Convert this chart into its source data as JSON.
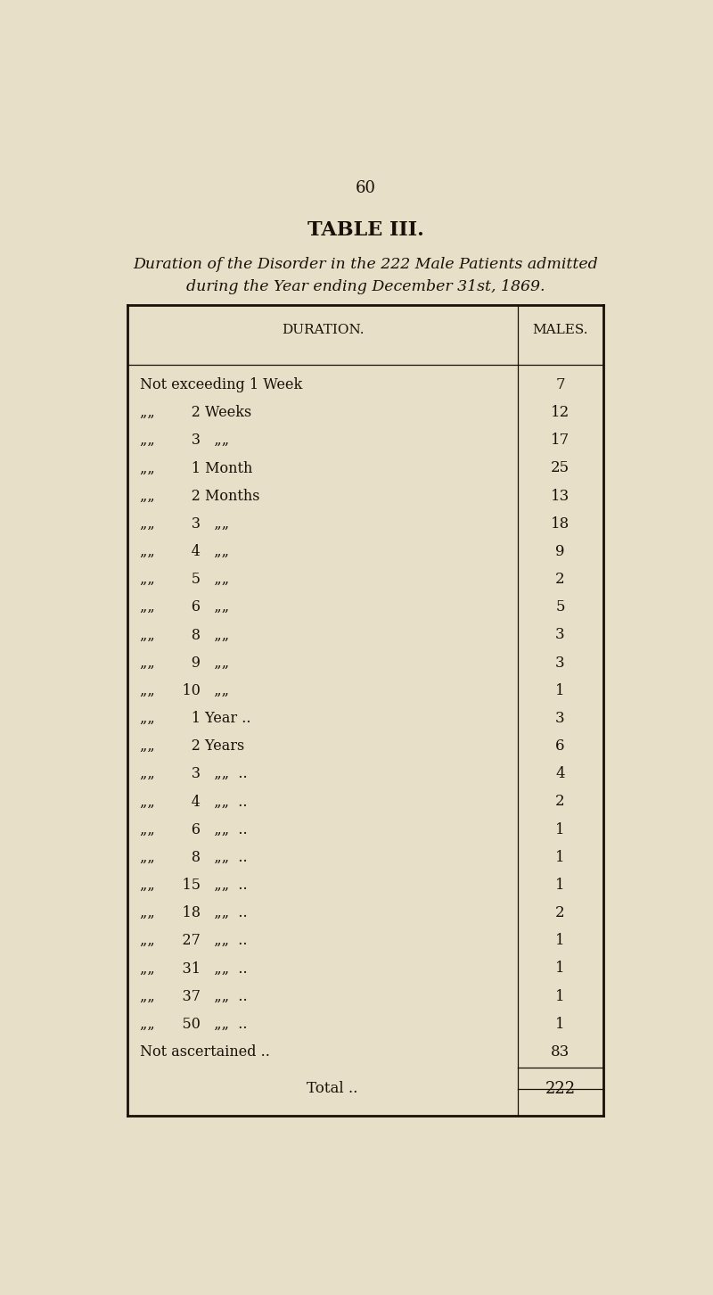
{
  "page_number": "60",
  "table_title": "TABLE III.",
  "subtitle_line1": "Duration of the Disorder in the 222 Male Patients admitted",
  "subtitle_line2": "during the Year ending December 31st, 1869.",
  "col_header_left": "DURATION.",
  "col_header_right": "MALES.",
  "rows": [
    [
      "Not exceeding 1 Week",
      "7"
    ],
    [
      "““       2 Weeks",
      "12"
    ],
    [
      "““       3   ““",
      "17"
    ],
    [
      "““       1 Month",
      "25"
    ],
    [
      "““       2 Months",
      "13"
    ],
    [
      "““       3   ““",
      "18"
    ],
    [
      "““       4   ““",
      "9"
    ],
    [
      "““       5   ““",
      "2"
    ],
    [
      "““       6   ““",
      "5"
    ],
    [
      "““       8   ““",
      "3"
    ],
    [
      "““       9   ““",
      "3"
    ],
    [
      "““     10   ““",
      "1"
    ],
    [
      "““       1 Year ..",
      "3"
    ],
    [
      "““       2 Years",
      "6"
    ],
    [
      "““       3   ““  ..",
      "4"
    ],
    [
      "““       4   ““  ..",
      "2"
    ],
    [
      "““       6   ““  ..",
      "1"
    ],
    [
      "““       8   ““  ..",
      "1"
    ],
    [
      "““     15   ““  ..",
      "1"
    ],
    [
      "““     18   ““  ..",
      "2"
    ],
    [
      "““     27   ““  ..",
      "1"
    ],
    [
      "““     31   ““  ..",
      "1"
    ],
    [
      "““     37   ““  ..",
      "1"
    ],
    [
      "““     50   ““  ..",
      "1"
    ],
    [
      "Not ascertained ..",
      "83"
    ]
  ],
  "total_label": "Total ..",
  "total_value": "222",
  "bg_color": "#e8dfc8",
  "text_color": "#1a1008"
}
